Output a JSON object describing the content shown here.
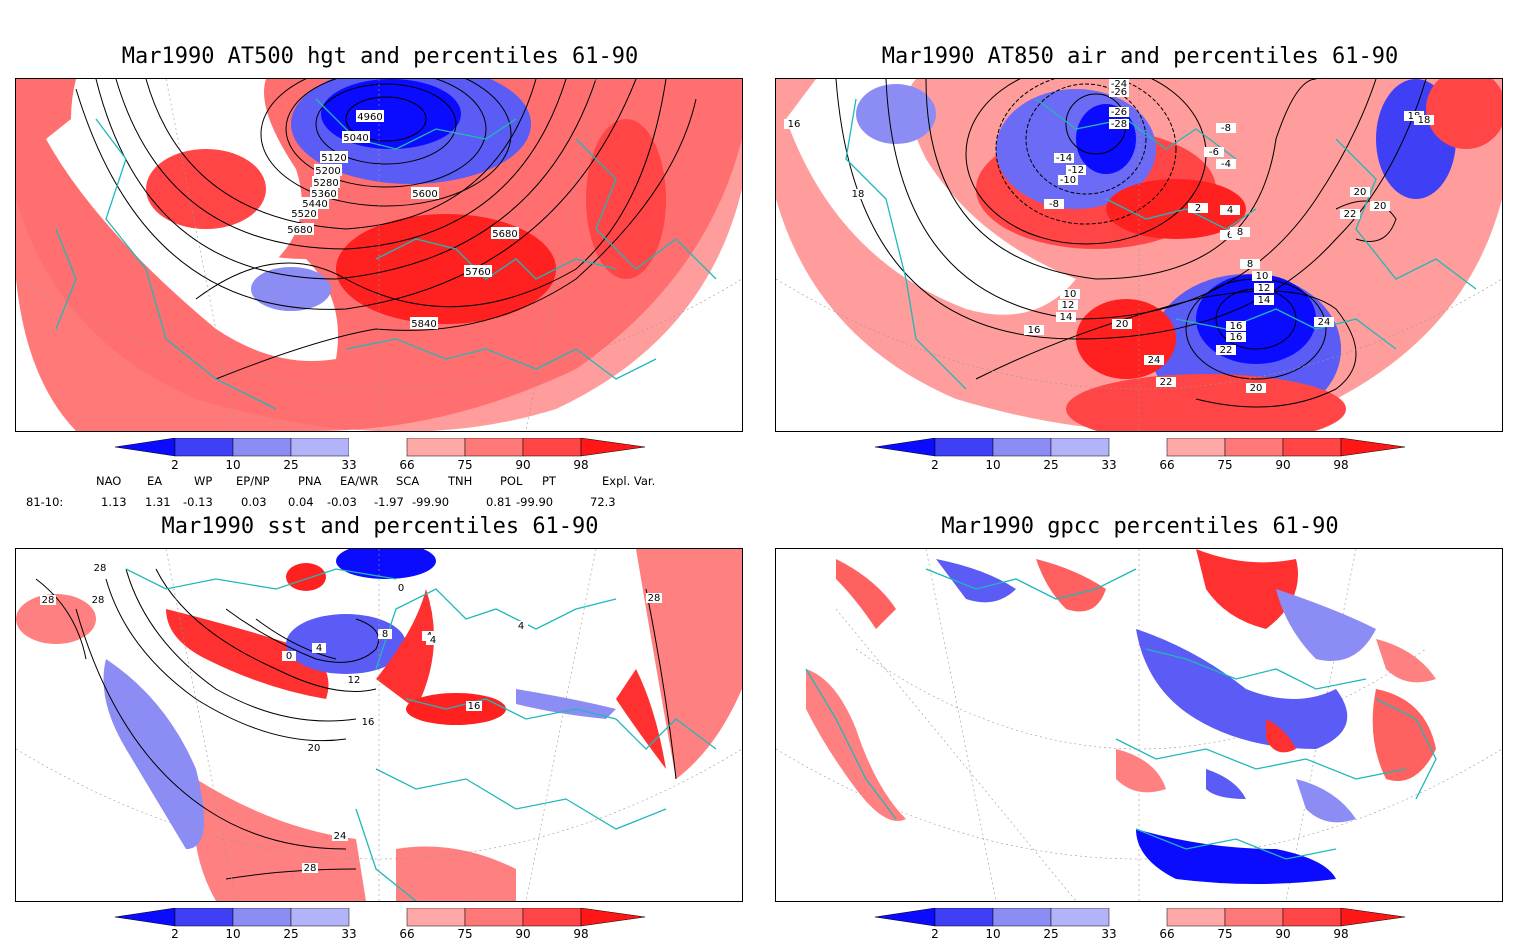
{
  "panels": {
    "hgt": {
      "title": "Mar1990 AT500 hgt and percentiles 61-90",
      "contour_labels": [
        "4960",
        "5040",
        "5120",
        "5200",
        "5280",
        "5360",
        "5440",
        "5520",
        "5600",
        "5680",
        "5680",
        "5760",
        "5840"
      ]
    },
    "air": {
      "title": "Mar1990 AT850 air and percentiles 61-90",
      "contour_labels": [
        "-24",
        "-26",
        "-28",
        "-26",
        "-12",
        "-14",
        "-10",
        "-8",
        "-8",
        "-6",
        "-4",
        "2",
        "4",
        "6",
        "8",
        "10",
        "12",
        "14",
        "16",
        "16",
        "16",
        "18",
        "18",
        "18",
        "20",
        "20",
        "20",
        "22",
        "22",
        "22",
        "24",
        "24",
        "16",
        "14",
        "12",
        "10",
        "8",
        "20"
      ]
    },
    "sst": {
      "title": "Mar1990 sst and percentiles 61-90",
      "contour_labels": [
        "28",
        "28",
        "28",
        "0",
        "4",
        "8",
        "12",
        "16",
        "20",
        "24",
        "28",
        "4",
        "4",
        "4",
        "16",
        "0",
        "28"
      ]
    },
    "gpcc": {
      "title": "Mar1990 gpcc percentiles 61-90",
      "contour_labels": []
    }
  },
  "colorbar": {
    "ticks": [
      "2",
      "10",
      "25",
      "33",
      "66",
      "75",
      "90",
      "98"
    ],
    "colors": {
      "blue_dark": "#0b0bff",
      "blue_mid": "#3f3ff5",
      "blue_light": "#8c8cf5",
      "blue_pale": "#b3b3fa",
      "white": "#ffffff",
      "red_pale": "#ffa8a8",
      "red_light": "#ff7878",
      "red_mid": "#ff4545",
      "red_dark": "#ff1717"
    }
  },
  "teleconnections": {
    "headers": [
      "NAO",
      "EA",
      "WP",
      "EP/NP",
      "PNA",
      "EA/WR",
      "SCA",
      "TNH",
      "POL",
      "PT",
      "Expl. Var."
    ],
    "row_label": "81-10:",
    "values": [
      "1.13",
      "1.31",
      "-0.13",
      "0.03",
      "0.04",
      "-0.03",
      "-1.97",
      "-99.90",
      "0.81",
      "-99.90",
      "72.3"
    ]
  },
  "colors": {
    "coast": "#20b8b8",
    "contour": "#000000",
    "frame": "#000000"
  }
}
